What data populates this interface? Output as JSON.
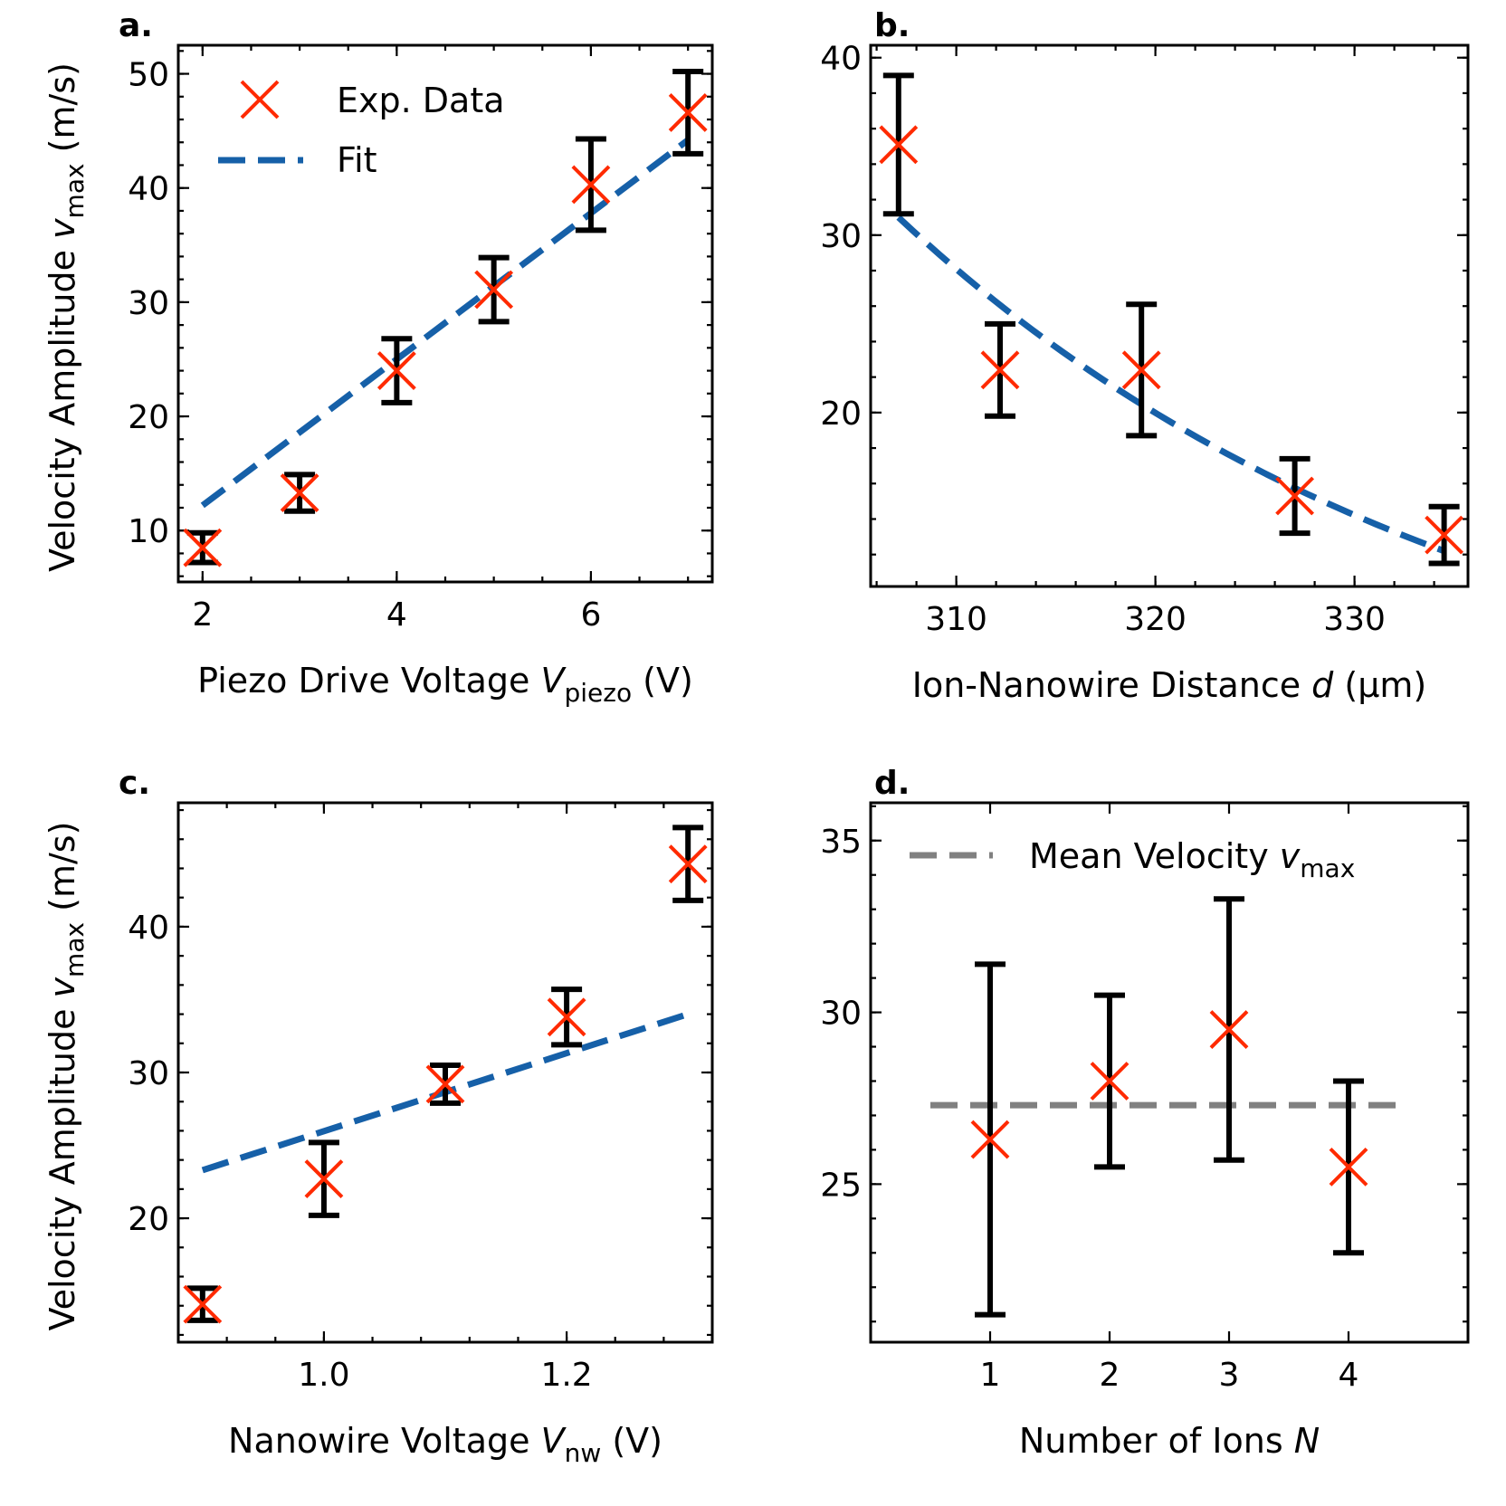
{
  "colors": {
    "marker": "#ff2a00",
    "fit": "#1660a8",
    "mean": "#808080",
    "errorbar": "#000000"
  },
  "chart_data": [
    {
      "id": "a",
      "panel_label": "a.",
      "type": "scatter",
      "xlabel": "Piezo Drive Voltage",
      "xlabel_sym": "V",
      "xlabel_sub": "piezo",
      "xlabel_unit": "(V)",
      "ylabel": "Velocity Amplitude",
      "ylabel_sym": "v",
      "ylabel_sub": "max",
      "ylabel_unit": "(m/s)",
      "xlim": [
        1.75,
        7.25
      ],
      "ylim": [
        5.5,
        52.5
      ],
      "xticks": [
        2,
        4,
        6
      ],
      "xtick_labels": [
        "2",
        "4",
        "6"
      ],
      "xminor_step": 0.5,
      "yticks": [
        10,
        20,
        30,
        40,
        50
      ],
      "ytick_labels": [
        "10",
        "20",
        "30",
        "40",
        "50"
      ],
      "yminor_step": 2,
      "series": [
        {
          "name": "Exp. Data",
          "x": [
            2,
            3,
            4,
            5,
            6,
            7
          ],
          "y": [
            8.5,
            13.3,
            24.0,
            31.1,
            40.3,
            46.6
          ],
          "yerr": [
            1.3,
            1.6,
            2.8,
            2.8,
            4.0,
            3.6
          ]
        }
      ],
      "fit": {
        "name": "Fit",
        "x": [
          2,
          7
        ],
        "y": [
          12.2,
          44.2
        ],
        "kind": "line"
      },
      "legend": [
        "Exp. Data",
        "Fit"
      ],
      "legend_position": "top-left"
    },
    {
      "id": "b",
      "panel_label": "b.",
      "type": "scatter",
      "xlabel": "Ion-Nanowire Distance",
      "xlabel_sym": "d",
      "xlabel_sub": "",
      "xlabel_unit": "(μm)",
      "ylabel": "",
      "xlim": [
        305.7,
        335.7
      ],
      "ylim": [
        10.2,
        40.7
      ],
      "xticks": [
        310,
        320,
        330
      ],
      "xtick_labels": [
        "310",
        "320",
        "330"
      ],
      "xminor_step": 2,
      "yticks": [
        20,
        30,
        40
      ],
      "ytick_labels": [
        "20",
        "30",
        "40"
      ],
      "yminor_step": 2,
      "series": [
        {
          "name": "Exp. Data",
          "x": [
            307.1,
            312.2,
            319.3,
            327.0,
            334.5
          ],
          "y": [
            35.1,
            22.4,
            22.4,
            15.3,
            13.1
          ],
          "yerr": [
            3.9,
            2.6,
            3.7,
            2.1,
            1.6
          ]
        }
      ],
      "fit": {
        "name": "Fit",
        "kind": "exp",
        "x0": 307.1,
        "x1": 334.5,
        "y0": 31.0,
        "y1": 12.2
      },
      "legend": [],
      "legend_position": ""
    },
    {
      "id": "c",
      "panel_label": "c.",
      "type": "scatter",
      "xlabel": "Nanowire Voltage",
      "xlabel_sym": "V",
      "xlabel_sub": "nw",
      "xlabel_unit": "(V)",
      "ylabel": "Velocity Amplitude",
      "ylabel_sym": "v",
      "ylabel_sub": "max",
      "ylabel_unit": "(m/s)",
      "xlim": [
        0.88,
        1.32
      ],
      "ylim": [
        11.5,
        48.5
      ],
      "xticks": [
        1.0,
        1.2
      ],
      "xtick_labels": [
        "1.0",
        "1.2"
      ],
      "xminor_step": 0.04,
      "yticks": [
        20,
        30,
        40
      ],
      "ytick_labels": [
        "20",
        "30",
        "40"
      ],
      "yminor_step": 2,
      "series": [
        {
          "name": "Exp. Data",
          "x": [
            0.9,
            1.0,
            1.1,
            1.2,
            1.3
          ],
          "y": [
            14.1,
            22.7,
            29.2,
            33.8,
            44.3
          ],
          "yerr": [
            1.1,
            2.5,
            1.3,
            1.9,
            2.5
          ]
        }
      ],
      "fit": {
        "name": "Fit",
        "x": [
          0.9,
          1.3
        ],
        "y": [
          23.3,
          34.0
        ],
        "kind": "line"
      },
      "legend": [],
      "legend_position": ""
    },
    {
      "id": "d",
      "panel_label": "d.",
      "type": "scatter",
      "xlabel": "Number of Ions",
      "xlabel_sym": "N",
      "xlabel_sub": "",
      "xlabel_unit": "",
      "ylabel": "",
      "xlim": [
        0.0,
        5.0
      ],
      "ylim": [
        20.4,
        36.1
      ],
      "xticks": [
        1,
        2,
        3,
        4
      ],
      "xtick_labels": [
        "1",
        "2",
        "3",
        "4"
      ],
      "xminor_step": null,
      "yticks": [
        25,
        30,
        35
      ],
      "ytick_labels": [
        "25",
        "30",
        "35"
      ],
      "yminor_step": 1,
      "series": [
        {
          "name": "Exp. Data",
          "x": [
            1,
            2,
            3,
            4
          ],
          "y": [
            26.3,
            28.0,
            29.5,
            25.5
          ],
          "yerr": [
            5.1,
            2.5,
            3.8,
            2.5
          ]
        }
      ],
      "mean": {
        "name": "Mean Velocity",
        "value": 27.3,
        "x": [
          0.5,
          4.5
        ]
      },
      "legend": [
        "Mean Velocity"
      ],
      "legend_sym": "v",
      "legend_sub": "max",
      "legend_position": "top-center"
    }
  ]
}
